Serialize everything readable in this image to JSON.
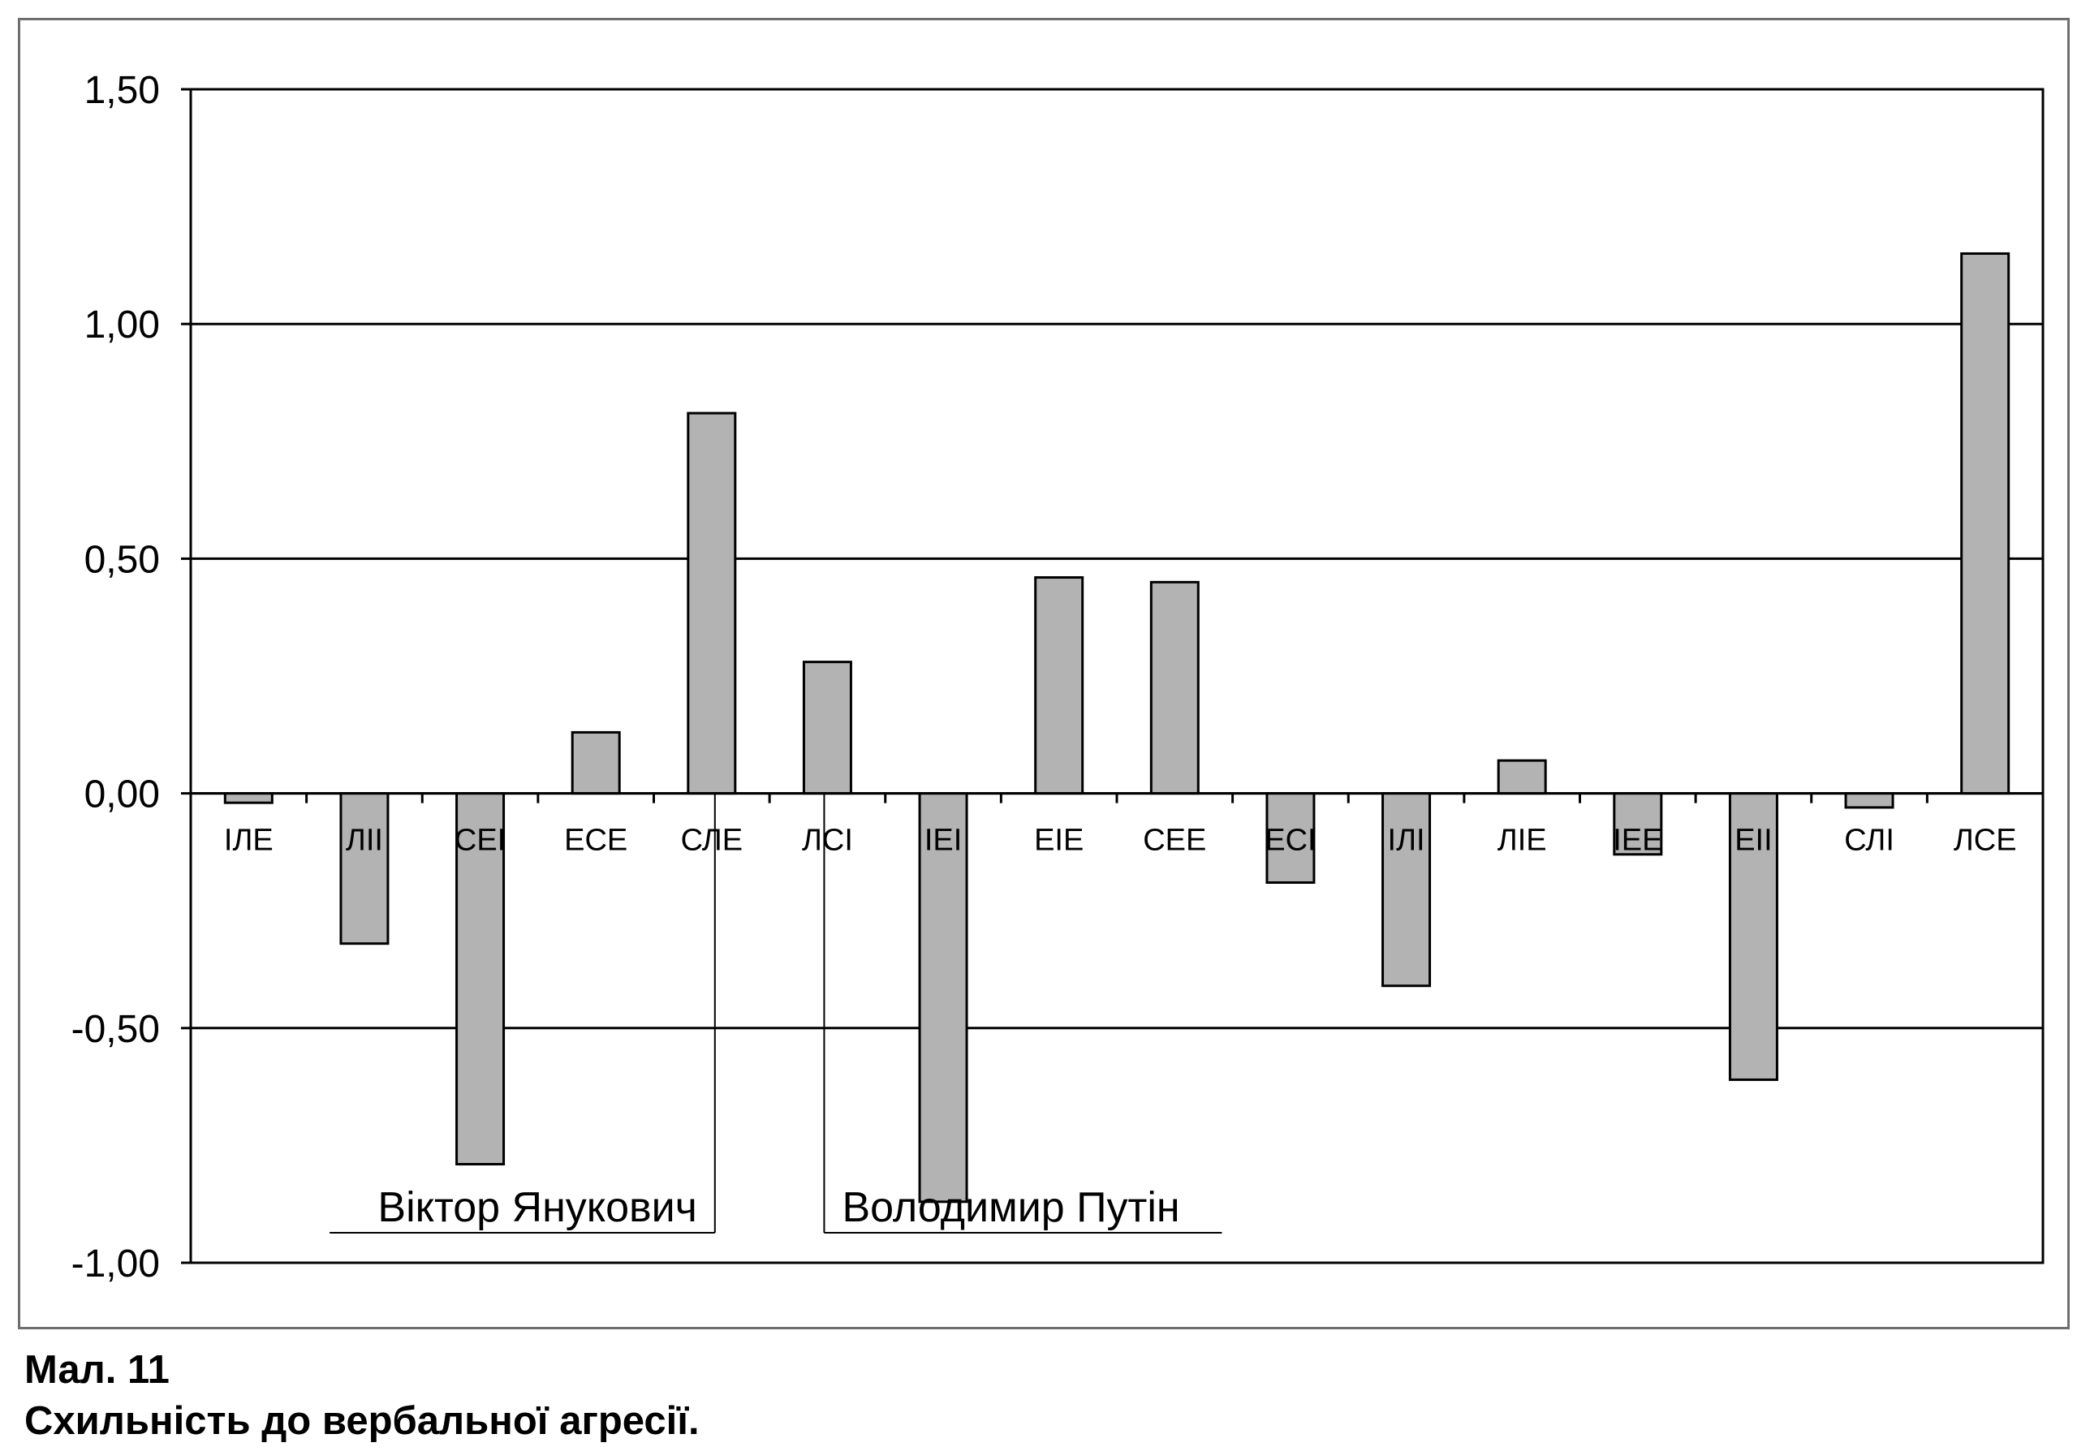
{
  "chart_data": {
    "type": "bar",
    "categories": [
      "ІЛЕ",
      "ЛІІ",
      "СЕІ",
      "ЕСЕ",
      "СЛЕ",
      "ЛСІ",
      "ІЕІ",
      "ЕІЕ",
      "СЕЕ",
      "ЕСІ",
      "ІЛІ",
      "ЛІЕ",
      "ІЕЕ",
      "ЕІІ",
      "СЛІ",
      "ЛСЕ"
    ],
    "values": [
      -0.02,
      -0.32,
      -0.79,
      0.13,
      0.81,
      0.28,
      -0.87,
      0.46,
      0.45,
      -0.19,
      -0.41,
      0.07,
      -0.13,
      -0.61,
      -0.03,
      1.15
    ],
    "yticks": [
      "1,50",
      "1,00",
      "0,50",
      "0,00",
      "-0,50",
      "-1,00"
    ],
    "ylim": [
      -1.0,
      1.5
    ],
    "grid": true,
    "bar_color": "#b3b3b3",
    "annotations": [
      {
        "text": "Віктор Янукович",
        "category": "СЛЕ",
        "value": -0.905
      },
      {
        "text": "Володимир Путін",
        "category": "ЛСІ",
        "value": -0.905
      }
    ]
  },
  "caption": {
    "number": "Мал. 11",
    "title": "Схильність до вербальної агресії."
  }
}
